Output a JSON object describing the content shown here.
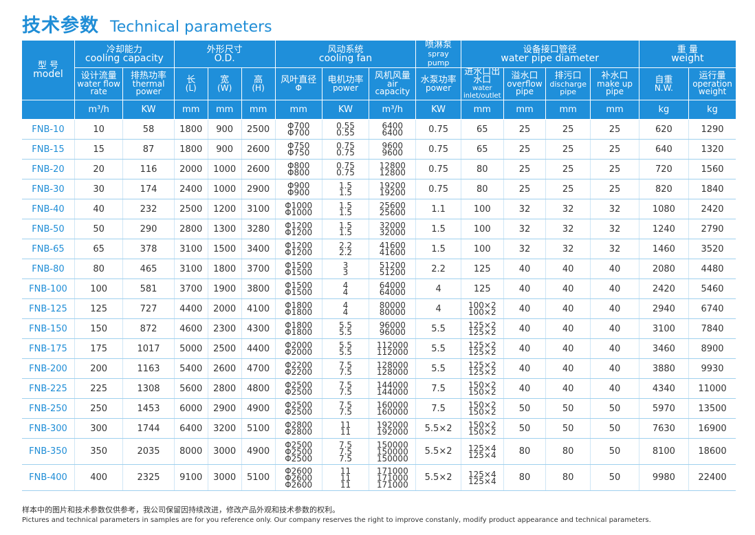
{
  "header": {
    "title_zh": "技术参数",
    "title_en": "Technical parameters"
  },
  "table": {
    "groups": {
      "model": {
        "zh": "型 号",
        "en": "model"
      },
      "cooling_capacity": {
        "zh": "冷却能力",
        "en": "cooling capacity"
      },
      "od": {
        "zh": "外形尺寸",
        "en": "O.D."
      },
      "cooling_fan": {
        "zh": "风动系统",
        "en": "cooling fan"
      },
      "spray_pump": {
        "zh": "喷淋泵",
        "en": "spray pump"
      },
      "water_pipe": {
        "zh": "设备接口管径",
        "en": "water pipe diameter"
      },
      "weight": {
        "zh": "重 量",
        "en": "weight"
      }
    },
    "columns": [
      {
        "zh": "设计流量",
        "en": "water flow rate",
        "unit": "m³/h"
      },
      {
        "zh": "排热功率",
        "en": "thermal power",
        "unit": "KW"
      },
      {
        "zh": "长",
        "en": "(L)",
        "unit": "mm"
      },
      {
        "zh": "宽",
        "en": "(W)",
        "unit": "mm"
      },
      {
        "zh": "高",
        "en": "(H)",
        "unit": "mm"
      },
      {
        "zh": "风叶直径",
        "en": "Φ",
        "unit": "mm"
      },
      {
        "zh": "电机功率",
        "en": "power",
        "unit": "KW"
      },
      {
        "zh": "风机风量",
        "en": "air capacity",
        "unit": "m³/h"
      },
      {
        "zh": "水泵功率",
        "en": "power",
        "unit": "KW"
      },
      {
        "zh": "进水口出水口",
        "en": "water inlet/outlet",
        "unit": "mm"
      },
      {
        "zh": "溢水口",
        "en": "overflow pipe",
        "unit": "mm"
      },
      {
        "zh": "排污口",
        "en": "discharge pipe",
        "unit": "mm"
      },
      {
        "zh": "补水口",
        "en": "make up pipe",
        "unit": "mm"
      },
      {
        "zh": "自重",
        "en": "N.W.",
        "unit": "kg"
      },
      {
        "zh": "运行量",
        "en": "operation weight",
        "unit": "kg"
      }
    ],
    "rows": [
      {
        "model": "FNB-10",
        "flow": "10",
        "heat": "58",
        "l": "1800",
        "w": "900",
        "h": "2500",
        "fan": [
          "Φ700",
          "Φ700"
        ],
        "motor": [
          "0.55",
          "0.55"
        ],
        "air": [
          "6400",
          "6400"
        ],
        "pump": "0.75",
        "inlet": [
          "65"
        ],
        "overflow": "25",
        "discharge": "25",
        "makeup": "25",
        "nw": "620",
        "op": "1290"
      },
      {
        "model": "FNB-15",
        "flow": "15",
        "heat": "87",
        "l": "1800",
        "w": "900",
        "h": "2600",
        "fan": [
          "Φ750",
          "Φ750"
        ],
        "motor": [
          "0.75",
          "0.75"
        ],
        "air": [
          "9600",
          "9600"
        ],
        "pump": "0.75",
        "inlet": [
          "65"
        ],
        "overflow": "25",
        "discharge": "25",
        "makeup": "25",
        "nw": "640",
        "op": "1320"
      },
      {
        "model": "FNB-20",
        "flow": "20",
        "heat": "116",
        "l": "2000",
        "w": "1000",
        "h": "2600",
        "fan": [
          "Φ800",
          "Φ800"
        ],
        "motor": [
          "0.75",
          "0.75"
        ],
        "air": [
          "12800",
          "12800"
        ],
        "pump": "0.75",
        "inlet": [
          "80"
        ],
        "overflow": "25",
        "discharge": "25",
        "makeup": "25",
        "nw": "720",
        "op": "1560"
      },
      {
        "model": "FNB-30",
        "flow": "30",
        "heat": "174",
        "l": "2400",
        "w": "1000",
        "h": "2900",
        "fan": [
          "Φ900",
          "Φ900"
        ],
        "motor": [
          "1.5",
          "1.5"
        ],
        "air": [
          "19200",
          "19200"
        ],
        "pump": "0.75",
        "inlet": [
          "80"
        ],
        "overflow": "25",
        "discharge": "25",
        "makeup": "25",
        "nw": "820",
        "op": "1840"
      },
      {
        "model": "FNB-40",
        "flow": "40",
        "heat": "232",
        "l": "2500",
        "w": "1200",
        "h": "3100",
        "fan": [
          "Φ1000",
          "Φ1000"
        ],
        "motor": [
          "1.5",
          "1.5"
        ],
        "air": [
          "25600",
          "25600"
        ],
        "pump": "1.1",
        "inlet": [
          "100"
        ],
        "overflow": "32",
        "discharge": "32",
        "makeup": "32",
        "nw": "1080",
        "op": "2420"
      },
      {
        "model": "FNB-50",
        "flow": "50",
        "heat": "290",
        "l": "2800",
        "w": "1300",
        "h": "3280",
        "fan": [
          "Φ1200",
          "Φ1200"
        ],
        "motor": [
          "1.5",
          "1.5"
        ],
        "air": [
          "32000",
          "32000"
        ],
        "pump": "1.5",
        "inlet": [
          "100"
        ],
        "overflow": "32",
        "discharge": "32",
        "makeup": "32",
        "nw": "1240",
        "op": "2790"
      },
      {
        "model": "FNB-65",
        "flow": "65",
        "heat": "378",
        "l": "3100",
        "w": "1500",
        "h": "3400",
        "fan": [
          "Φ1200",
          "Φ1200"
        ],
        "motor": [
          "2.2",
          "2.2"
        ],
        "air": [
          "41600",
          "41600"
        ],
        "pump": "1.5",
        "inlet": [
          "100"
        ],
        "overflow": "32",
        "discharge": "32",
        "makeup": "32",
        "nw": "1460",
        "op": "3520"
      },
      {
        "model": "FNB-80",
        "flow": "80",
        "heat": "465",
        "l": "3100",
        "w": "1800",
        "h": "3700",
        "fan": [
          "Φ1500",
          "Φ1500"
        ],
        "motor": [
          "3",
          "3"
        ],
        "air": [
          "51200",
          "51200"
        ],
        "pump": "2.2",
        "inlet": [
          "125"
        ],
        "overflow": "40",
        "discharge": "40",
        "makeup": "40",
        "nw": "2080",
        "op": "4480"
      },
      {
        "model": "FNB-100",
        "flow": "100",
        "heat": "581",
        "l": "3700",
        "w": "1900",
        "h": "3800",
        "fan": [
          "Φ1500",
          "Φ1500"
        ],
        "motor": [
          "4",
          "4"
        ],
        "air": [
          "64000",
          "64000"
        ],
        "pump": "4",
        "inlet": [
          "125"
        ],
        "overflow": "40",
        "discharge": "40",
        "makeup": "40",
        "nw": "2420",
        "op": "5460"
      },
      {
        "model": "FNB-125",
        "flow": "125",
        "heat": "727",
        "l": "4400",
        "w": "2000",
        "h": "4100",
        "fan": [
          "Φ1800",
          "Φ1800"
        ],
        "motor": [
          "4",
          "4"
        ],
        "air": [
          "80000",
          "80000"
        ],
        "pump": "4",
        "inlet": [
          "100×2",
          "100×2"
        ],
        "overflow": "40",
        "discharge": "40",
        "makeup": "40",
        "nw": "2940",
        "op": "6740"
      },
      {
        "model": "FNB-150",
        "flow": "150",
        "heat": "872",
        "l": "4600",
        "w": "2300",
        "h": "4300",
        "fan": [
          "Φ1800",
          "Φ1800"
        ],
        "motor": [
          "5.5",
          "5.5"
        ],
        "air": [
          "96000",
          "96000"
        ],
        "pump": "5.5",
        "inlet": [
          "125×2",
          "125×2"
        ],
        "overflow": "40",
        "discharge": "40",
        "makeup": "40",
        "nw": "3100",
        "op": "7840"
      },
      {
        "model": "FNB-175",
        "flow": "175",
        "heat": "1017",
        "l": "5000",
        "w": "2500",
        "h": "4400",
        "fan": [
          "Φ2000",
          "Φ2000"
        ],
        "motor": [
          "5.5",
          "5.5"
        ],
        "air": [
          "112000",
          "112000"
        ],
        "pump": "5.5",
        "inlet": [
          "125×2",
          "125×2"
        ],
        "overflow": "40",
        "discharge": "40",
        "makeup": "40",
        "nw": "3460",
        "op": "8900"
      },
      {
        "model": "FNB-200",
        "flow": "200",
        "heat": "1163",
        "l": "5400",
        "w": "2600",
        "h": "4700",
        "fan": [
          "Φ2200",
          "Φ2200"
        ],
        "motor": [
          "7.5",
          "7.5"
        ],
        "air": [
          "128000",
          "128000"
        ],
        "pump": "5.5",
        "inlet": [
          "125×2",
          "125×2"
        ],
        "overflow": "40",
        "discharge": "40",
        "makeup": "40",
        "nw": "3880",
        "op": "9930"
      },
      {
        "model": "FNB-225",
        "flow": "225",
        "heat": "1308",
        "l": "5600",
        "w": "2800",
        "h": "4800",
        "fan": [
          "Φ2500",
          "Φ2500"
        ],
        "motor": [
          "7.5",
          "7.5"
        ],
        "air": [
          "144000",
          "144000"
        ],
        "pump": "7.5",
        "inlet": [
          "150×2",
          "150×2"
        ],
        "overflow": "40",
        "discharge": "40",
        "makeup": "40",
        "nw": "4340",
        "op": "11000"
      },
      {
        "model": "FNB-250",
        "flow": "250",
        "heat": "1453",
        "l": "6000",
        "w": "2900",
        "h": "4900",
        "fan": [
          "Φ2500",
          "Φ2500"
        ],
        "motor": [
          "7.5",
          "7.5"
        ],
        "air": [
          "160000",
          "160000"
        ],
        "pump": "7.5",
        "inlet": [
          "150×2",
          "150×2"
        ],
        "overflow": "50",
        "discharge": "50",
        "makeup": "50",
        "nw": "5970",
        "op": "13500"
      },
      {
        "model": "FNB-300",
        "flow": "300",
        "heat": "1744",
        "l": "6400",
        "w": "3200",
        "h": "5100",
        "fan": [
          "Φ2800",
          "Φ2800"
        ],
        "motor": [
          "11",
          "11"
        ],
        "air": [
          "192000",
          "192000"
        ],
        "pump": "5.5×2",
        "inlet": [
          "150×2",
          "150×2"
        ],
        "overflow": "50",
        "discharge": "50",
        "makeup": "50",
        "nw": "7630",
        "op": "16900"
      },
      {
        "model": "FNB-350",
        "flow": "350",
        "heat": "2035",
        "l": "8000",
        "w": "3000",
        "h": "4900",
        "fan": [
          "Φ2500",
          "Φ2500",
          "Φ2500"
        ],
        "motor": [
          "7.5",
          "7.5",
          "7.5"
        ],
        "air": [
          "150000",
          "150000",
          "150000"
        ],
        "pump": "5.5×2",
        "inlet": [
          "125×4",
          "125×4"
        ],
        "overflow": "80",
        "discharge": "80",
        "makeup": "50",
        "nw": "8100",
        "op": "18600"
      },
      {
        "model": "FNB-400",
        "flow": "400",
        "heat": "2325",
        "l": "9100",
        "w": "3000",
        "h": "5100",
        "fan": [
          "Φ2600",
          "Φ2600",
          "Φ2600"
        ],
        "motor": [
          "11",
          "11",
          "11"
        ],
        "air": [
          "171000",
          "171000",
          "171000"
        ],
        "pump": "5.5×2",
        "inlet": [
          "125×4",
          "125×4"
        ],
        "overflow": "80",
        "discharge": "80",
        "makeup": "50",
        "nw": "9980",
        "op": "22400"
      }
    ]
  },
  "footer": {
    "note_zh": "样本中的图片和技术参数仅供参考，我公司保留因持续改进，修改产品外观和技术参数的权利。",
    "note_en": "Pictures and technical parameters in samples are for you reference only. Our company reserves the right to improve constanly, modify product appearance and technical parameters."
  }
}
